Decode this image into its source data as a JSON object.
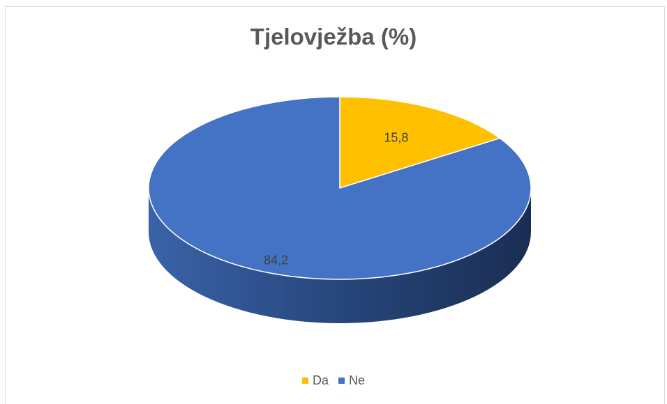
{
  "chart_data": {
    "type": "pie",
    "title": "Tjelovježba (%)",
    "slices": [
      {
        "label": "Da",
        "value": 15.8,
        "value_label": "15,8",
        "color": "#ffc000"
      },
      {
        "label": "Ne",
        "value": 84.2,
        "value_label": "84,2",
        "color": "#4472c4"
      }
    ],
    "style": "3d",
    "legend_position": "bottom"
  }
}
